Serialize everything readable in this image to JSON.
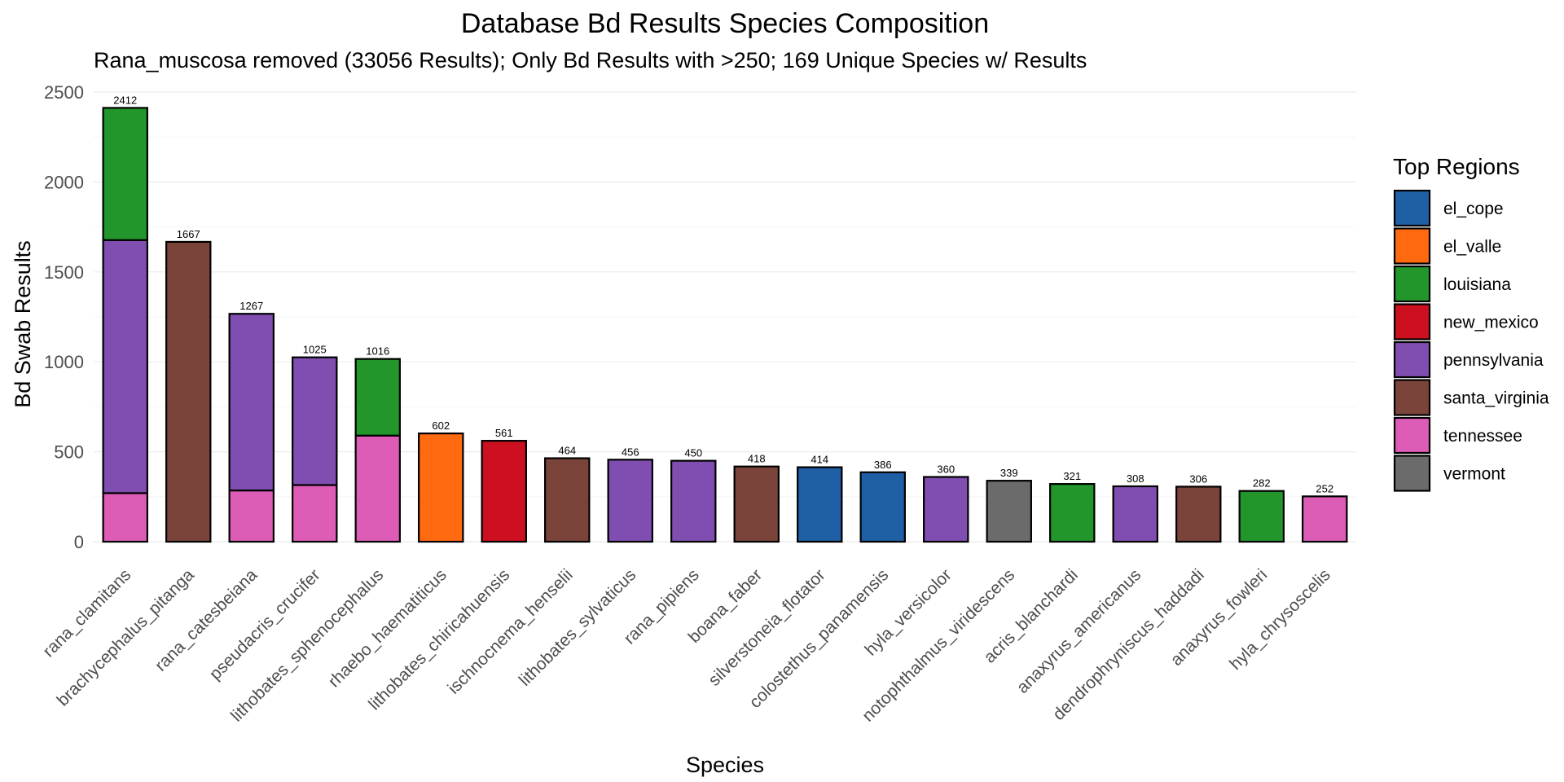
{
  "chart_data": {
    "type": "bar",
    "stacked": true,
    "title": "Database Bd Results Species Composition",
    "subtitle": "Rana_muscosa removed (33056 Results); Only Bd Results with >250; 169 Unique Species w/ Results",
    "xlabel": "Species",
    "ylabel": "Bd Swab Results",
    "ylim": [
      0,
      2500
    ],
    "yticks": [
      0,
      500,
      1000,
      1500,
      2000,
      2500
    ],
    "grid": true,
    "legend": {
      "title": "Top Regions",
      "position": "right"
    },
    "colors": {
      "el_cope": "#1f5fa6",
      "el_valle": "#ff6a10",
      "louisiana": "#22962a",
      "new_mexico": "#cc1020",
      "pennsylvania": "#804eb1",
      "santa_virginia": "#7a443a",
      "tennessee": "#dd5cb6",
      "vermont": "#6b6b6b"
    },
    "series": [
      {
        "name": "el_cope"
      },
      {
        "name": "el_valle"
      },
      {
        "name": "louisiana"
      },
      {
        "name": "new_mexico"
      },
      {
        "name": "pennsylvania"
      },
      {
        "name": "santa_virginia"
      },
      {
        "name": "tennessee"
      },
      {
        "name": "vermont"
      }
    ],
    "categories": [
      "rana_clamitans",
      "brachycephalus_pitanga",
      "rana_catesbeiana",
      "pseudacris_crucifer",
      "lithobates_sphenocephalus",
      "rhaebo_haematiticus",
      "lithobates_chiricahuensis",
      "ischnocnema_henselii",
      "lithobates_sylvaticus",
      "rana_pipiens",
      "boana_faber",
      "silverstoneia_flotator",
      "colostethus_panamensis",
      "hyla_versicolor",
      "notophthalmus_viridescens",
      "acris_blanchardi",
      "anaxyrus_americanus",
      "dendrophryniscus_haddadi",
      "anaxyrus_fowleri",
      "hyla_chrysoscelis"
    ],
    "totals": [
      2412,
      1667,
      1267,
      1025,
      1016,
      602,
      561,
      464,
      456,
      450,
      418,
      414,
      386,
      360,
      339,
      321,
      308,
      306,
      282,
      252
    ],
    "stacks": [
      [
        {
          "region": "tennessee",
          "value": 270
        },
        {
          "region": "pennsylvania",
          "value": 1407
        },
        {
          "region": "louisiana",
          "value": 735
        }
      ],
      [
        {
          "region": "santa_virginia",
          "value": 1667
        }
      ],
      [
        {
          "region": "tennessee",
          "value": 285
        },
        {
          "region": "pennsylvania",
          "value": 982
        }
      ],
      [
        {
          "region": "tennessee",
          "value": 315
        },
        {
          "region": "pennsylvania",
          "value": 710
        }
      ],
      [
        {
          "region": "tennessee",
          "value": 590
        },
        {
          "region": "louisiana",
          "value": 426
        }
      ],
      [
        {
          "region": "el_valle",
          "value": 602
        }
      ],
      [
        {
          "region": "new_mexico",
          "value": 561
        }
      ],
      [
        {
          "region": "santa_virginia",
          "value": 464
        }
      ],
      [
        {
          "region": "pennsylvania",
          "value": 456
        }
      ],
      [
        {
          "region": "pennsylvania",
          "value": 450
        }
      ],
      [
        {
          "region": "santa_virginia",
          "value": 418
        }
      ],
      [
        {
          "region": "el_cope",
          "value": 414
        }
      ],
      [
        {
          "region": "el_cope",
          "value": 386
        }
      ],
      [
        {
          "region": "pennsylvania",
          "value": 360
        }
      ],
      [
        {
          "region": "vermont",
          "value": 339
        }
      ],
      [
        {
          "region": "louisiana",
          "value": 321
        }
      ],
      [
        {
          "region": "pennsylvania",
          "value": 308
        }
      ],
      [
        {
          "region": "santa_virginia",
          "value": 306
        }
      ],
      [
        {
          "region": "louisiana",
          "value": 282
        }
      ],
      [
        {
          "region": "tennessee",
          "value": 252
        }
      ]
    ]
  }
}
